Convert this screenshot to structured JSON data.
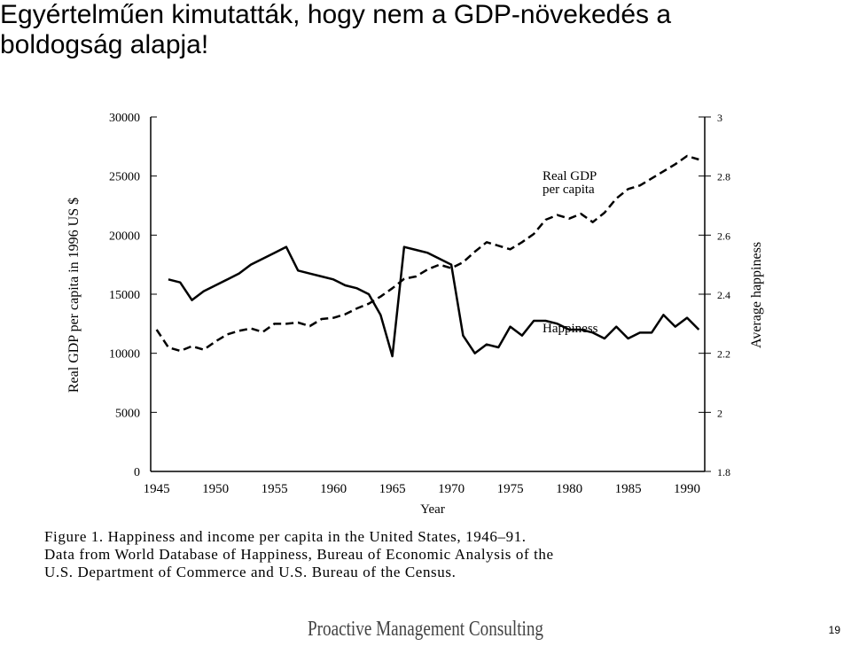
{
  "slide_title": [
    "Egyértelműen kimutatták, hogy nem a GDP-növekedés a",
    "boldogság alapja!"
  ],
  "chart_data": {
    "type": "line",
    "x_label": "Year",
    "y_label": "Real GDP per capita in 1996 US $",
    "y2_label": "Average happiness",
    "annotations": [
      "Real GDP",
      "per capita",
      "Happiness"
    ],
    "x": [
      1945,
      1946,
      1947,
      1948,
      1949,
      1950,
      1951,
      1952,
      1953,
      1954,
      1955,
      1956,
      1957,
      1958,
      1959,
      1960,
      1961,
      1962,
      1963,
      1964,
      1965,
      1966,
      1967,
      1968,
      1969,
      1970,
      1971,
      1972,
      1973,
      1974,
      1975,
      1976,
      1977,
      1978,
      1979,
      1980,
      1981,
      1982,
      1983,
      1984,
      1985,
      1986,
      1987,
      1988,
      1989,
      1990,
      1991
    ],
    "series": [
      {
        "name": "Real GDP per capita",
        "color": "#000000",
        "dashed": true,
        "values": [
          12000,
          10500,
          10200,
          10600,
          10300,
          11000,
          11600,
          11900,
          12100,
          11800,
          12500,
          12500,
          12600,
          12300,
          12900,
          13000,
          13300,
          13800,
          14200,
          14800,
          15500,
          16300,
          16500,
          17100,
          17500,
          17200,
          17700,
          18600,
          19400,
          19100,
          18800,
          19400,
          20100,
          21300,
          21700,
          21400,
          21800,
          21100,
          21900,
          23100,
          23900,
          24200,
          24800,
          25400,
          26000,
          26700,
          26400
        ]
      },
      {
        "name": "Happiness",
        "color": "#000000",
        "dashed": false,
        "axis": "y2",
        "values": [
          null,
          2.45,
          2.44,
          2.38,
          2.41,
          2.43,
          2.45,
          2.47,
          2.5,
          2.52,
          2.54,
          2.56,
          2.48,
          2.47,
          2.46,
          2.45,
          2.43,
          2.42,
          2.4,
          2.33,
          2.19,
          2.56,
          2.55,
          2.54,
          2.52,
          2.5,
          2.26,
          2.2,
          2.23,
          2.22,
          2.29,
          2.26,
          2.31,
          2.31,
          2.3,
          2.28,
          2.28,
          2.27,
          2.25,
          2.29,
          2.25,
          2.27,
          2.27,
          2.33,
          2.29,
          2.32,
          2.28
        ]
      }
    ],
    "xlim": [
      1944.5,
      1991.5
    ],
    "xticks": [
      1945,
      1950,
      1955,
      1960,
      1965,
      1970,
      1975,
      1980,
      1985,
      1990
    ],
    "ylim": [
      0,
      30000
    ],
    "yticks": [
      0,
      5000,
      10000,
      15000,
      20000,
      25000,
      30000
    ],
    "y2lim": [
      1.8,
      3
    ],
    "y2ticks": [
      1.8,
      2,
      2.2,
      2.4,
      2.6,
      2.8,
      3
    ],
    "grid": false
  },
  "caption": [
    "Figure 1.    Happiness and income per capita in the United States, 1946–91.",
    "Data from World Database of Happiness, Bureau of Economic Analysis of the",
    "U.S. Department of Commerce and U.S. Bureau of the Census."
  ],
  "footer": {
    "logo": "Proactive Management Consulting",
    "page": "19"
  }
}
